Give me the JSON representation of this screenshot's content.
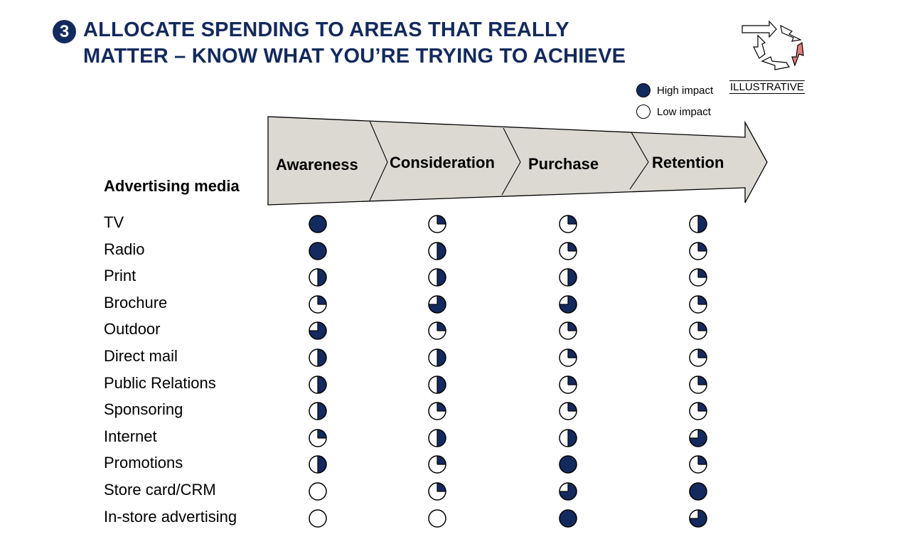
{
  "header": {
    "step_number": "3",
    "title_line1": "ALLOCATE SPENDING TO AREAS THAT REALLY",
    "title_line2": "MATTER – KNOW WHAT YOU’RE TRYING TO ACHIEVE",
    "illustrative": "ILLUSTRATIVE"
  },
  "legend": {
    "high": "High impact",
    "low": "Low impact"
  },
  "colors": {
    "navy": "#132a5e",
    "arrow_fill": "#dcd9d3",
    "logo_accent": "#e07f80"
  },
  "matrix": {
    "row_header": "Advertising media",
    "stages": [
      "Awareness",
      "Consideration",
      "Purchase",
      "Retention"
    ],
    "rows": [
      {
        "label": "TV",
        "scores": [
          4,
          1,
          1,
          2
        ]
      },
      {
        "label": "Radio",
        "scores": [
          4,
          2,
          1,
          1
        ]
      },
      {
        "label": "Print",
        "scores": [
          2,
          2,
          2,
          1
        ]
      },
      {
        "label": "Brochure",
        "scores": [
          1,
          3,
          3,
          1
        ]
      },
      {
        "label": "Outdoor",
        "scores": [
          3,
          1,
          1,
          1
        ]
      },
      {
        "label": "Direct mail",
        "scores": [
          2,
          2,
          1,
          1
        ]
      },
      {
        "label": "Public Relations",
        "scores": [
          2,
          2,
          1,
          1
        ]
      },
      {
        "label": "Sponsoring",
        "scores": [
          2,
          1,
          1,
          1
        ]
      },
      {
        "label": "Internet",
        "scores": [
          1,
          2,
          2,
          3
        ]
      },
      {
        "label": "Promotions",
        "scores": [
          2,
          1,
          4,
          1
        ]
      },
      {
        "label": "Store card/CRM",
        "scores": [
          0,
          1,
          3,
          4
        ]
      },
      {
        "label": "In-store advertising",
        "scores": [
          0,
          0,
          4,
          3
        ]
      }
    ]
  }
}
